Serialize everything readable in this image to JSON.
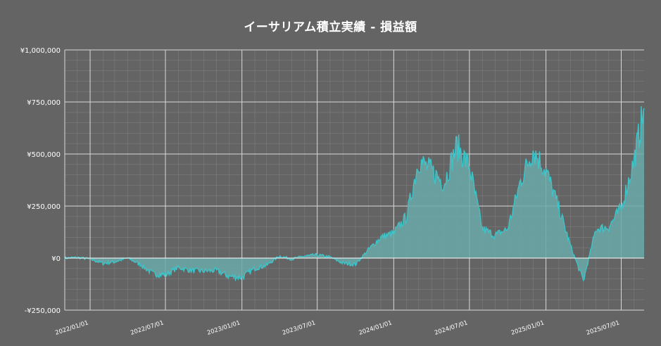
{
  "chart_data": {
    "type": "area",
    "title": "イーサリアム積立実績 - 損益額",
    "xlabel": "",
    "ylabel": "",
    "x_range": [
      "2021-11-01",
      "2025-08-25"
    ],
    "ylim": [
      -250000,
      1000000
    ],
    "y_ticks": [
      {
        "value": 1000000,
        "label": "¥1,000,000"
      },
      {
        "value": 750000,
        "label": "¥750,000"
      },
      {
        "value": 500000,
        "label": "¥500,000"
      },
      {
        "value": 250000,
        "label": "¥250,000"
      },
      {
        "value": 0,
        "label": "¥0"
      },
      {
        "value": -250000,
        "label": "-¥250,000"
      }
    ],
    "x_ticks": [
      {
        "date": "2022-01-01",
        "label": "2022/01/01"
      },
      {
        "date": "2022-07-01",
        "label": "2022/07/01"
      },
      {
        "date": "2023-01-01",
        "label": "2023/01/01"
      },
      {
        "date": "2023-07-01",
        "label": "2023/07/01"
      },
      {
        "date": "2024-01-01",
        "label": "2024/01/01"
      },
      {
        "date": "2024-07-01",
        "label": "2024/07/01"
      },
      {
        "date": "2025-01-01",
        "label": "2025/01/01"
      },
      {
        "date": "2025-07-01",
        "label": "2025/07/01"
      }
    ],
    "grid": true,
    "series": [
      {
        "color": "#3cc4c8",
        "fill": "#6aa9a9",
        "points": [
          [
            "2021-11-01",
            0
          ],
          [
            "2021-12-01",
            3000
          ],
          [
            "2022-01-01",
            -5000
          ],
          [
            "2022-02-01",
            -25000
          ],
          [
            "2022-03-01",
            -18000
          ],
          [
            "2022-04-01",
            0
          ],
          [
            "2022-05-01",
            -30000
          ],
          [
            "2022-06-01",
            -75000
          ],
          [
            "2022-07-01",
            -80000
          ],
          [
            "2022-08-01",
            -45000
          ],
          [
            "2022-09-01",
            -60000
          ],
          [
            "2022-10-01",
            -62000
          ],
          [
            "2022-11-01",
            -60000
          ],
          [
            "2022-12-01",
            -88000
          ],
          [
            "2023-01-01",
            -92000
          ],
          [
            "2023-02-01",
            -50000
          ],
          [
            "2023-03-01",
            -35000
          ],
          [
            "2023-04-01",
            10000
          ],
          [
            "2023-05-01",
            -5000
          ],
          [
            "2023-06-01",
            10000
          ],
          [
            "2023-07-01",
            15000
          ],
          [
            "2023-08-01",
            5000
          ],
          [
            "2023-09-01",
            -25000
          ],
          [
            "2023-10-01",
            -30000
          ],
          [
            "2023-11-01",
            40000
          ],
          [
            "2023-12-01",
            100000
          ],
          [
            "2024-01-01",
            120000
          ],
          [
            "2024-02-01",
            200000
          ],
          [
            "2024-03-01",
            470000
          ],
          [
            "2024-04-01",
            420000
          ],
          [
            "2024-05-01",
            360000
          ],
          [
            "2024-06-01",
            540000
          ],
          [
            "2024-07-01",
            440000
          ],
          [
            "2024-08-01",
            140000
          ],
          [
            "2024-09-01",
            110000
          ],
          [
            "2024-10-01",
            140000
          ],
          [
            "2024-11-01",
            370000
          ],
          [
            "2024-12-01",
            520000
          ],
          [
            "2025-01-01",
            420000
          ],
          [
            "2025-02-01",
            240000
          ],
          [
            "2025-03-01",
            60000
          ],
          [
            "2025-04-01",
            -110000
          ],
          [
            "2025-05-01",
            140000
          ],
          [
            "2025-06-01",
            150000
          ],
          [
            "2025-07-01",
            240000
          ],
          [
            "2025-08-01",
            470000
          ],
          [
            "2025-08-25",
            720000
          ]
        ]
      }
    ]
  }
}
